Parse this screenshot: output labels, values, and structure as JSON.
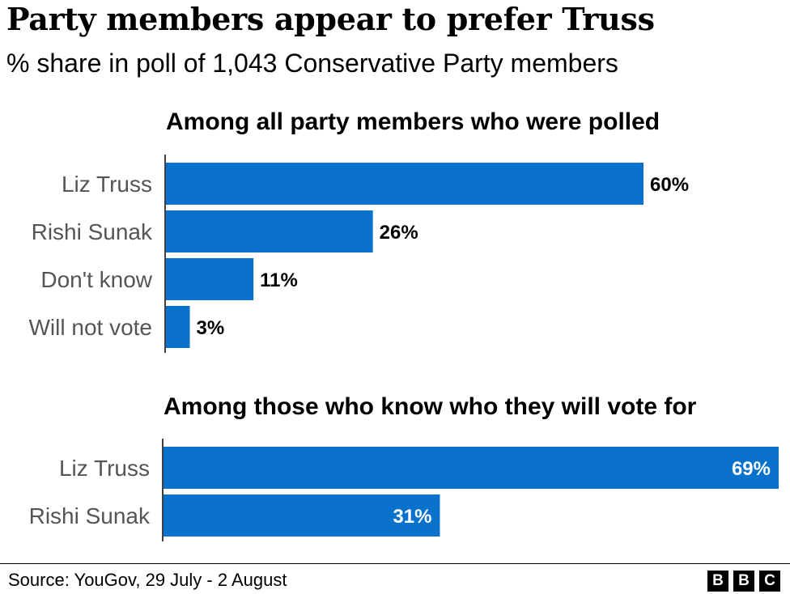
{
  "title": "Party members appear to prefer Truss",
  "subtitle": "% share in poll of 1,043 Conservative Party members",
  "colors": {
    "bar": "#0A72CC",
    "label_gray": "#555555",
    "axis": "#000000"
  },
  "chart_data": [
    {
      "type": "bar",
      "title": "Among all party members who were polled",
      "categories": [
        "Liz Truss",
        "Rishi Sunak",
        "Don't know",
        "Will not vote"
      ],
      "values": [
        60,
        26,
        11,
        3
      ],
      "value_labels": [
        "60%",
        "26%",
        "11%",
        "3%"
      ],
      "unit": "%",
      "xlim": [
        0,
        60
      ]
    },
    {
      "type": "bar",
      "title": "Among those who know who they will vote for",
      "categories": [
        "Liz Truss",
        "Rishi Sunak"
      ],
      "values": [
        69,
        31
      ],
      "value_labels": [
        "69%",
        "31%"
      ],
      "unit": "%",
      "xlim": [
        0,
        69
      ]
    }
  ],
  "footer": {
    "source": "Source: YouGov, 29 July - 2 August",
    "logo_letters": [
      "B",
      "B",
      "C"
    ]
  }
}
